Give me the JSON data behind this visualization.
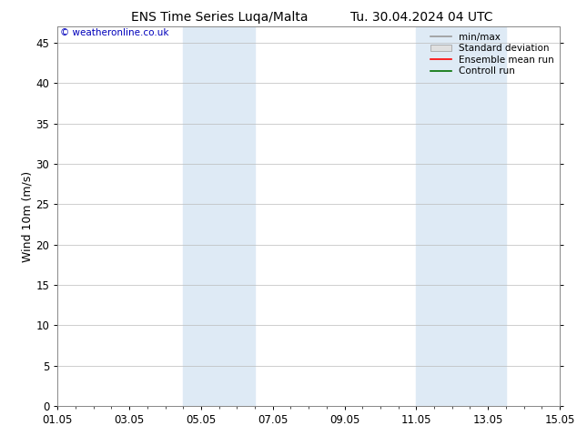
{
  "title_left": "ENS Time Series Luqa/Malta",
  "title_right": "Tu. 30.04.2024 04 UTC",
  "ylabel": "Wind 10m (m/s)",
  "watermark": "© weatheronline.co.uk",
  "xlim_dates": [
    "01.05",
    "03.05",
    "05.05",
    "07.05",
    "09.05",
    "11.05",
    "13.05",
    "15.05"
  ],
  "xtick_positions": [
    0,
    2,
    4,
    6,
    8,
    10,
    12,
    14
  ],
  "ylim": [
    0,
    47
  ],
  "yticks": [
    0,
    5,
    10,
    15,
    20,
    25,
    30,
    35,
    40,
    45
  ],
  "shaded_bands": [
    {
      "xstart": 3.5,
      "xend": 5.5
    },
    {
      "xstart": 10.0,
      "xend": 12.5
    }
  ],
  "shade_color": "#deeaf5",
  "bg_color": "#ffffff",
  "plot_bg_color": "#ffffff",
  "legend_entries": [
    {
      "label": "min/max",
      "color": "#999999",
      "style": "line"
    },
    {
      "label": "Standard deviation",
      "color": "#cccccc",
      "style": "bar"
    },
    {
      "label": "Ensemble mean run",
      "color": "#ff0000",
      "style": "line"
    },
    {
      "label": "Controll run",
      "color": "#007000",
      "style": "line"
    }
  ],
  "title_fontsize": 10,
  "axis_fontsize": 9,
  "tick_fontsize": 8.5,
  "watermark_color": "#0000bb",
  "spine_color": "#888888"
}
